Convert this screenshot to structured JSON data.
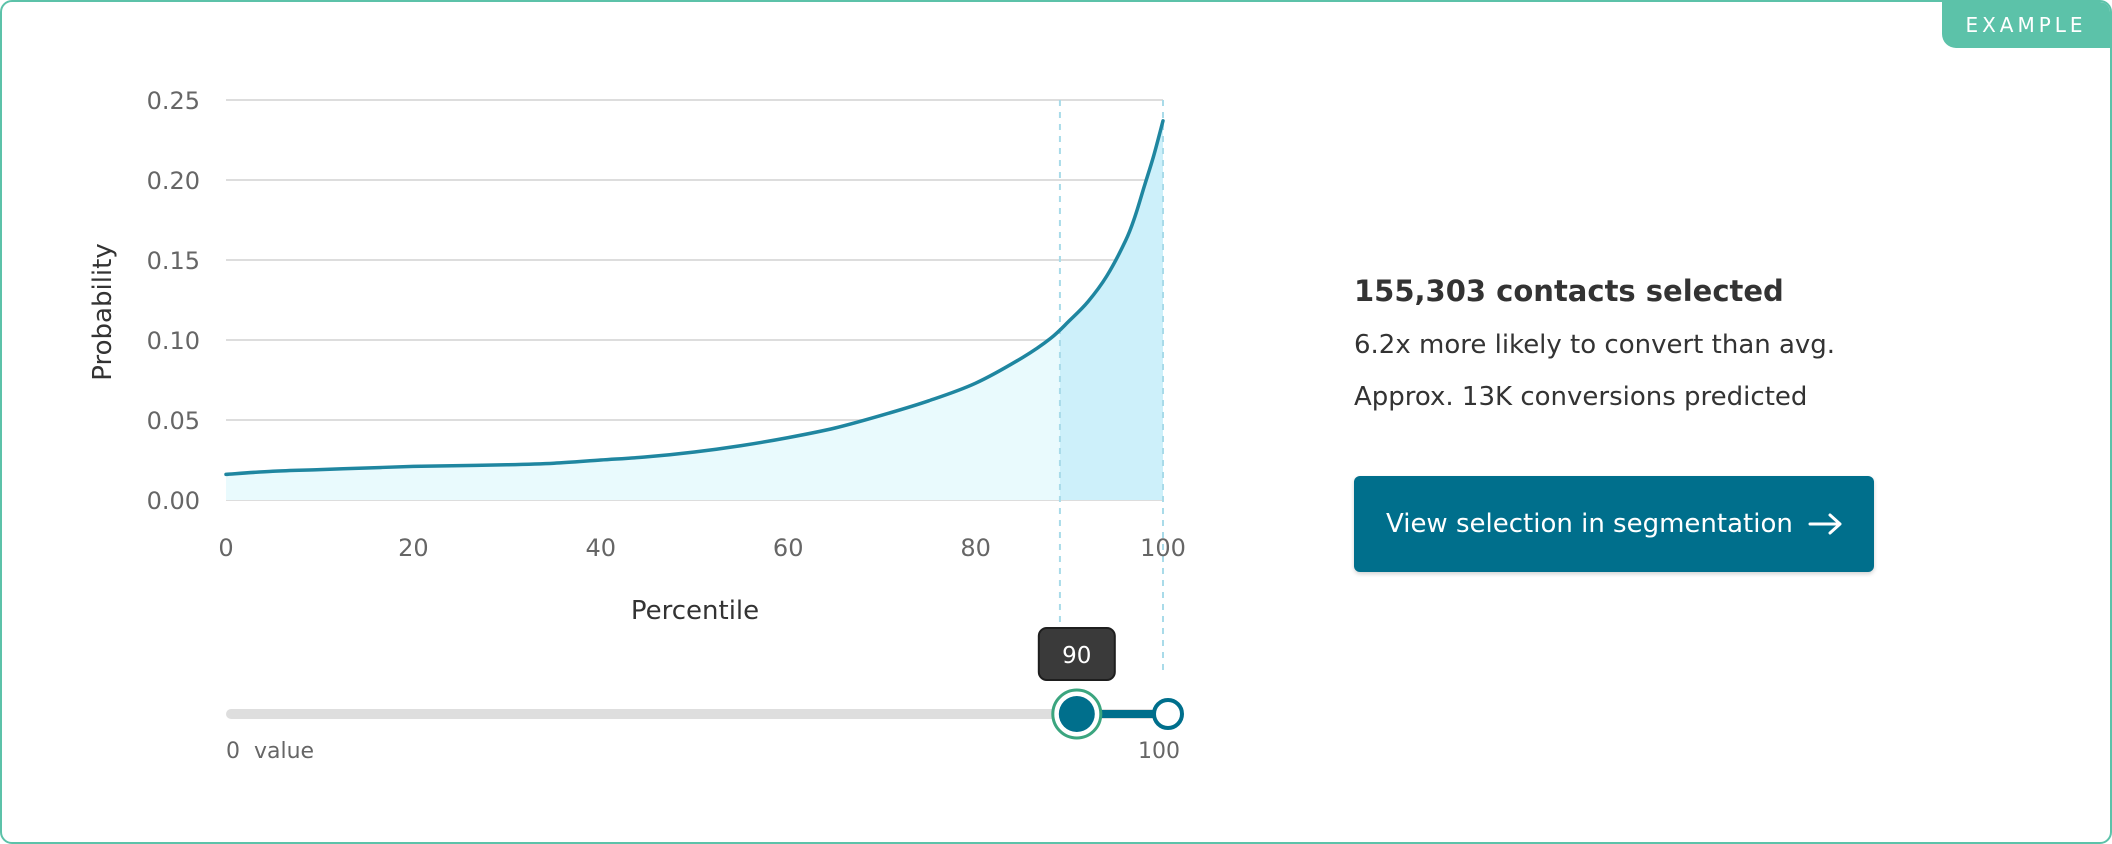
{
  "badge": {
    "label": "EXAMPLE"
  },
  "chart_data": {
    "type": "area",
    "xlabel": "Percentile",
    "ylabel": "Probability",
    "xlim": [
      0,
      100
    ],
    "ylim": [
      0,
      0.25
    ],
    "x_ticks": [
      0,
      20,
      40,
      60,
      80,
      100
    ],
    "y_ticks": [
      0.0,
      0.05,
      0.1,
      0.15,
      0.2,
      0.25
    ],
    "x_tick_labels": [
      "0",
      "20",
      "40",
      "60",
      "80",
      "100"
    ],
    "y_tick_labels": [
      "0.00",
      "0.05",
      "0.10",
      "0.15",
      "0.20",
      "0.25"
    ],
    "grid": true,
    "x": [
      0,
      5,
      10,
      15,
      20,
      25,
      30,
      35,
      40,
      45,
      50,
      55,
      60,
      65,
      70,
      75,
      80,
      85,
      88,
      90,
      92,
      94,
      96,
      97,
      98,
      99,
      100
    ],
    "values": [
      0.016,
      0.018,
      0.019,
      0.02,
      0.021,
      0.0215,
      0.022,
      0.023,
      0.025,
      0.027,
      0.03,
      0.034,
      0.039,
      0.045,
      0.053,
      0.062,
      0.073,
      0.089,
      0.101,
      0.112,
      0.124,
      0.14,
      0.162,
      0.177,
      0.196,
      0.215,
      0.237
    ],
    "selection": {
      "start": 89,
      "end": 100
    },
    "colors": {
      "line": "#1f86a0",
      "fill": "#e9fafd",
      "selected_fill": "#cdf0fa",
      "guide": "#a9dbe9",
      "grid": "#dddddd"
    }
  },
  "slider": {
    "min_label": "0  value",
    "max_label": "100",
    "low_value": 90,
    "high_value": 100,
    "tooltip": "90",
    "colors": {
      "track": "#dedede",
      "active": "#006f8c",
      "handle_ring": "#3ba57f"
    }
  },
  "summary": {
    "headline": "155,303 contacts selected",
    "lift": "6.2x more likely to convert than avg.",
    "conversions": "Approx. 13K conversions predicted"
  },
  "cta": {
    "label": "View selection in segmentation",
    "icon": "arrow-right-icon"
  }
}
